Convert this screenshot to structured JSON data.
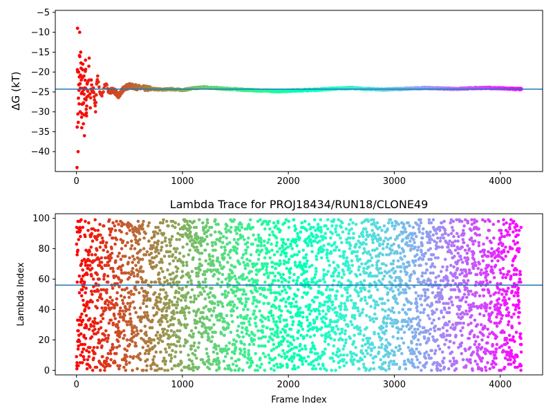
{
  "chart_data": [
    {
      "type": "scatter",
      "title": "",
      "xlabel": "",
      "ylabel": "ΔG (kT)",
      "xlim": [
        -200,
        4400
      ],
      "ylim": [
        -45,
        -4.5
      ],
      "x_ticks": [
        0,
        1000,
        2000,
        3000,
        4000
      ],
      "y_ticks": [
        -5,
        -10,
        -15,
        -20,
        -25,
        -30,
        -35,
        -40
      ],
      "hline": -24.3,
      "hline_color": "#1f77b4",
      "colormap": "rainbow (red at start, violet at end)",
      "grid": false,
      "x": [
        5,
        10,
        15,
        20,
        25,
        30,
        35,
        40,
        45,
        50,
        55,
        60,
        65,
        70,
        75,
        80,
        85,
        90,
        95,
        100,
        110,
        120,
        130,
        140,
        150,
        160,
        170,
        180,
        190,
        200,
        220,
        240,
        260,
        280,
        300,
        350,
        400,
        450,
        500,
        600,
        700,
        800,
        900,
        1000,
        1100,
        1200,
        1300,
        1400,
        1500,
        1600,
        1700,
        1800,
        1900,
        2000,
        2100,
        2200,
        2300,
        2400,
        2500,
        2600,
        2700,
        2800,
        2900,
        3000,
        3100,
        3200,
        3300,
        3400,
        3500,
        3600,
        3700,
        3800,
        3900,
        4000,
        4100,
        4200
      ],
      "y": [
        -44,
        -9,
        -40,
        -20,
        -28,
        -10,
        -30,
        -15,
        -22,
        -34,
        -25,
        -18,
        -33,
        -21,
        -36,
        -24,
        -17,
        -27,
        -31,
        -23,
        -26,
        -16.5,
        -29,
        -22,
        -25,
        -24,
        -27,
        -30,
        -23,
        -21,
        -25,
        -26,
        -24,
        -23,
        -25,
        -24.5,
        -26,
        -24,
        -23.5,
        -24,
        -24.2,
        -24.4,
        -24.3,
        -24.5,
        -24.1,
        -23.8,
        -24,
        -24.2,
        -24.3,
        -24.5,
        -24.6,
        -24.7,
        -24.8,
        -24.7,
        -24.6,
        -24.5,
        -24.4,
        -24.2,
        -24.1,
        -24,
        -24.2,
        -24.3,
        -24.4,
        -24.3,
        -24.2,
        -24.1,
        -24.0,
        -24.1,
        -24.2,
        -24.2,
        -24.1,
        -24.0,
        -24.0,
        -24.1,
        -24.2,
        -24.3
      ]
    },
    {
      "type": "scatter",
      "title": "Lambda Trace for PROJ18434/RUN18/CLONE49",
      "xlabel": "Frame Index",
      "ylabel": "Lambda Index",
      "xlim": [
        -200,
        4400
      ],
      "ylim": [
        -3,
        103
      ],
      "x_ticks": [
        0,
        1000,
        2000,
        3000,
        4000
      ],
      "y_ticks": [
        0,
        20,
        40,
        60,
        80,
        100
      ],
      "hline": 56,
      "hline_color": "#1f77b4",
      "colormap": "rainbow (red at start, violet at end)",
      "grid": false,
      "x_range": [
        0,
        4200
      ],
      "y_range": [
        0,
        99
      ]
    }
  ]
}
